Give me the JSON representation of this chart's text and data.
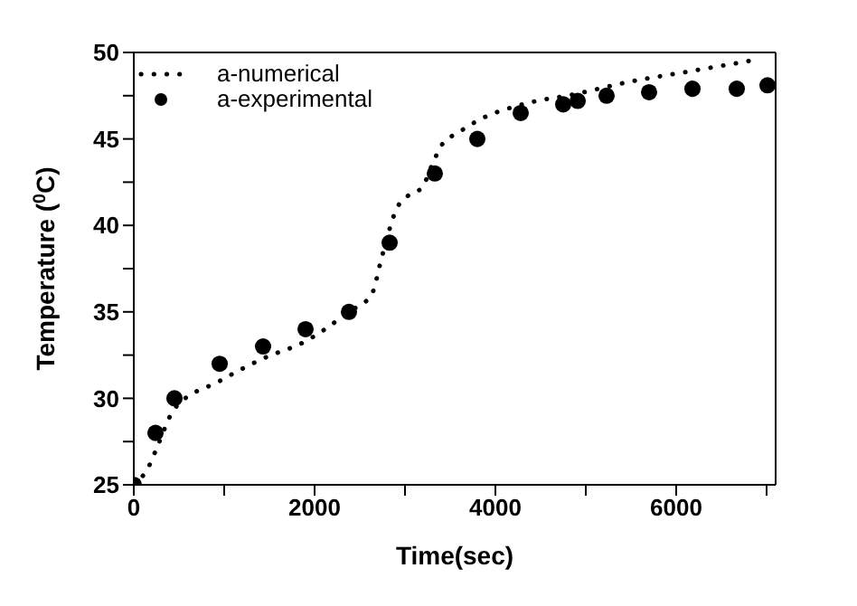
{
  "chart_data": {
    "type": "line",
    "xlabel": "Time(sec)",
    "ylabel": "Temperature ($^{0}$C)",
    "xlim": [
      0,
      7100
    ],
    "xticks": [
      0,
      {
        "value": 1000,
        "label": null
      },
      2000,
      {
        "value": 3000,
        "label": null
      },
      4000,
      {
        "value": 5000,
        "label": null
      },
      6000,
      {
        "value": 7000,
        "label": null
      }
    ],
    "ylim": [
      25,
      50
    ],
    "yticks": [
      25,
      {
        "value": 27.5,
        "label": null
      },
      30,
      {
        "value": 32.5,
        "label": null
      },
      35,
      {
        "value": 37.5,
        "label": null
      },
      40,
      {
        "value": 42.5,
        "label": null
      },
      45,
      {
        "value": 47.5,
        "label": null
      },
      50
    ],
    "grid": false,
    "legend": "top left",
    "series": [
      {
        "name": "a-numerical",
        "line_style": "dotted",
        "marker": "none",
        "color": "#000000",
        "x": [
          0,
          160,
          260,
          450,
          950,
          1430,
          1900,
          2380,
          2630,
          2750,
          2910,
          3030,
          3190,
          3300,
          3400,
          3600,
          3820,
          4300,
          4890,
          5480,
          6140,
          6910
        ],
        "values": [
          25,
          26,
          27.2,
          29.4,
          31,
          32.3,
          33.3,
          35,
          36,
          38.3,
          41,
          41.7,
          42.2,
          43.5,
          44.6,
          45.4,
          46.1,
          47,
          47.6,
          48.3,
          48.9,
          49.6
        ]
      },
      {
        "name": "a-experimental",
        "type": "scatter",
        "marker": "circle",
        "color": "#000000",
        "x": [
          0,
          240,
          450,
          950,
          1430,
          1900,
          2380,
          2830,
          3330,
          3800,
          4280,
          4750,
          4910,
          5230,
          5700,
          6180,
          6670,
          7010
        ],
        "values": [
          25,
          28,
          30,
          32,
          33,
          34,
          35,
          39,
          43,
          45,
          46.5,
          47,
          47.2,
          47.5,
          47.7,
          47.9,
          47.9,
          48.1
        ]
      }
    ]
  }
}
